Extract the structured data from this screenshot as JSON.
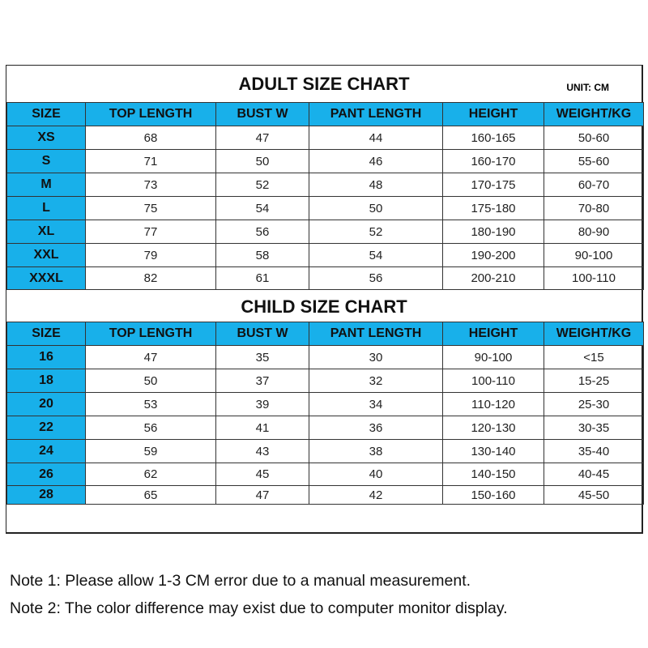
{
  "adult": {
    "title": "ADULT SIZE CHART",
    "unit": "UNIT: CM",
    "headers": [
      "SIZE",
      "TOP LENGTH",
      "BUST W",
      "PANT LENGTH",
      "HEIGHT",
      "WEIGHT/KG"
    ],
    "rows": [
      [
        "XS",
        "68",
        "47",
        "44",
        "160-165",
        "50-60"
      ],
      [
        "S",
        "71",
        "50",
        "46",
        "160-170",
        "55-60"
      ],
      [
        "M",
        "73",
        "52",
        "48",
        "170-175",
        "60-70"
      ],
      [
        "L",
        "75",
        "54",
        "50",
        "175-180",
        "70-80"
      ],
      [
        "XL",
        "77",
        "56",
        "52",
        "180-190",
        "80-90"
      ],
      [
        "XXL",
        "79",
        "58",
        "54",
        "190-200",
        "90-100"
      ],
      [
        "XXXL",
        "82",
        "61",
        "56",
        "200-210",
        "100-110"
      ]
    ]
  },
  "child": {
    "title": "CHILD SIZE CHART",
    "headers": [
      "SIZE",
      "TOP LENGTH",
      "BUST W",
      "PANT LENGTH",
      "HEIGHT",
      "WEIGHT/KG"
    ],
    "rows": [
      [
        "16",
        "47",
        "35",
        "30",
        "90-100",
        "<15"
      ],
      [
        "18",
        "50",
        "37",
        "32",
        "100-110",
        "15-25"
      ],
      [
        "20",
        "53",
        "39",
        "34",
        "110-120",
        "25-30"
      ],
      [
        "22",
        "56",
        "41",
        "36",
        "120-130",
        "30-35"
      ],
      [
        "24",
        "59",
        "43",
        "38",
        "130-140",
        "35-40"
      ],
      [
        "26",
        "62",
        "45",
        "40",
        "140-150",
        "40-45"
      ],
      [
        "28",
        "65",
        "47",
        "42",
        "150-160",
        "45-50"
      ]
    ]
  },
  "notes": [
    "Note 1: Please allow 1-3 CM error due to a manual measurement.",
    "Note 2: The color difference may exist due to computer monitor display."
  ],
  "colors": {
    "header": "#18b0ea"
  }
}
